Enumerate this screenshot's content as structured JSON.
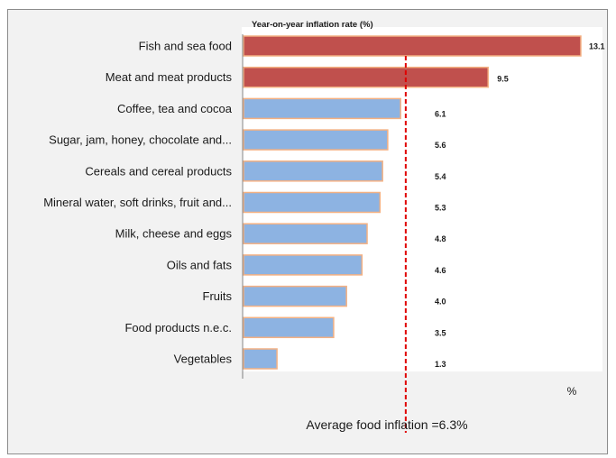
{
  "chart_data": {
    "type": "bar",
    "orientation": "horizontal",
    "title": "Year-on-year inflation rate (%)",
    "unit_label": "%",
    "categories": [
      "Fish and sea food",
      "Meat and meat products",
      "Coffee, tea and cocoa",
      "Sugar, jam, honey, chocolate and...",
      "Cereals and cereal products",
      "Mineral water, soft drinks, fruit and...",
      "Milk, cheese and eggs",
      "Oils and fats",
      "Fruits",
      "Food products n.e.c.",
      "Vegetables"
    ],
    "values": [
      13.1,
      9.5,
      6.1,
      5.6,
      5.4,
      5.3,
      4.8,
      4.6,
      4.0,
      3.5,
      1.3
    ],
    "value_labels": [
      "13.1",
      "9.5",
      "6.1",
      "5.6",
      "5.4",
      "5.3",
      "4.8",
      "4.6",
      "4.0",
      "3.5",
      "1.3"
    ],
    "xlim": [
      0,
      13.1
    ],
    "highlight_threshold": 6.3,
    "average": {
      "value": 6.3,
      "label": "Average food inflation =6.3%"
    },
    "colors": {
      "above_average": "#c0504d",
      "below_average": "#8db3e2",
      "bar_border": "#f4b183",
      "average_line": "#e00000"
    },
    "grid": false,
    "legend": "none"
  }
}
